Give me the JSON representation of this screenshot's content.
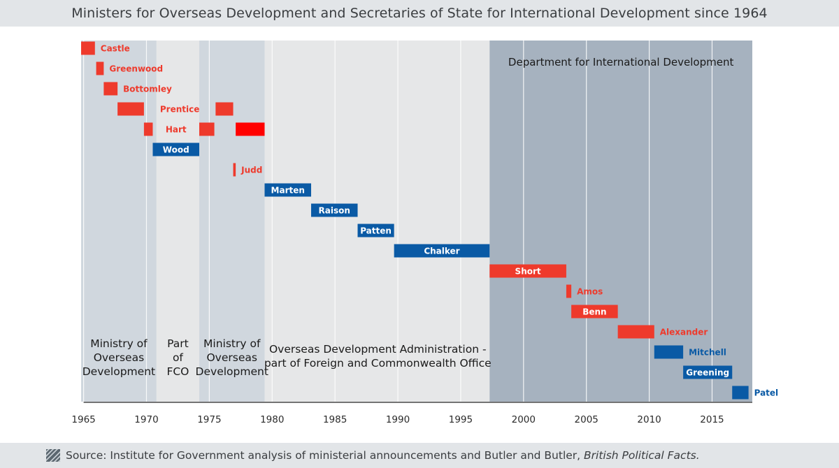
{
  "title": "Ministers for Overseas Development and Secretaries of State for International Development since 1964",
  "source": {
    "prefix": "Source: Institute for Government analysis of ministerial announcements and Butler and Butler, ",
    "italic": "British Political Facts."
  },
  "colors": {
    "labour": "#ee3a2c",
    "labour_highlight": "#ff0000",
    "conservative": "#0a5aa5",
    "band_light": "#e6e7e8",
    "band_mid": "#d0d7de",
    "band_dark": "#a6b2bf",
    "grid": "#ffffff",
    "axis": "#222222"
  },
  "chart_data": {
    "type": "gantt",
    "title": "Ministers for Overseas Development and Secretaries of State for International Development since 1964",
    "x_axis": {
      "range": [
        1964.8,
        2018.2
      ],
      "ticks": [
        1965,
        1970,
        1975,
        1980,
        1985,
        1990,
        1995,
        2000,
        2005,
        2010,
        2015
      ],
      "tick_labels": [
        "1965",
        "1970",
        "1975",
        "1980",
        "1985",
        "1990",
        "1995",
        "2000",
        "2005",
        "2010",
        "2015"
      ]
    },
    "periods": [
      {
        "start": 1964.8,
        "end": 1970.8,
        "shade": "mid",
        "label_lines": [
          "Ministry of",
          "Overseas",
          "Development"
        ],
        "label_x": 1967.8
      },
      {
        "start": 1970.8,
        "end": 1974.2,
        "shade": "light",
        "label_lines": [
          "Part",
          "of",
          "FCO"
        ],
        "label_x": 1972.5
      },
      {
        "start": 1974.2,
        "end": 1979.4,
        "shade": "mid",
        "label_lines": [
          "Ministry of",
          "Overseas",
          "Development"
        ],
        "label_x": 1976.8
      },
      {
        "start": 1979.4,
        "end": 1997.3,
        "shade": "light",
        "label_lines": [
          "Overseas Development Administration -",
          "part of Foreign and Commonwealth Office"
        ],
        "label_x": 1988.4
      },
      {
        "start": 1997.3,
        "end": 2018.2,
        "shade": "dark",
        "label_lines": [
          "Department for International Development"
        ],
        "label_x": 2007.75
      }
    ],
    "ministers": [
      {
        "name": "Castle",
        "party": "Labour",
        "row": 0,
        "terms": [
          [
            1964.8,
            1965.9
          ]
        ],
        "label_pos": "right"
      },
      {
        "name": "Greenwood",
        "party": "Labour",
        "row": 1,
        "terms": [
          [
            1966.0,
            1966.6
          ]
        ],
        "label_pos": "right"
      },
      {
        "name": "Bottomley",
        "party": "Labour",
        "row": 2,
        "terms": [
          [
            1966.6,
            1967.7
          ]
        ],
        "label_pos": "right"
      },
      {
        "name": "Prentice",
        "party": "Labour",
        "row": 3,
        "terms": [
          [
            1967.7,
            1969.8
          ],
          [
            1975.5,
            1976.9
          ]
        ],
        "label_pos": "between"
      },
      {
        "name": "Hart",
        "party": "Labour",
        "row": 4,
        "terms": [
          [
            1969.8,
            1970.5
          ],
          [
            1974.2,
            1975.4
          ],
          [
            1977.1,
            1979.4,
            "highlight"
          ]
        ],
        "label_pos": "between"
      },
      {
        "name": "Wood",
        "party": "Conservative",
        "row": 5,
        "terms": [
          [
            1970.5,
            1974.2
          ]
        ],
        "label_pos": "inside"
      },
      {
        "name": "Judd",
        "party": "Labour",
        "row": 6,
        "terms": [
          [
            1976.9,
            1977.1
          ]
        ],
        "label_pos": "right"
      },
      {
        "name": "Marten",
        "party": "Conservative",
        "row": 7,
        "terms": [
          [
            1979.4,
            1983.1
          ]
        ],
        "label_pos": "inside"
      },
      {
        "name": "Raison",
        "party": "Conservative",
        "row": 8,
        "terms": [
          [
            1983.1,
            1986.8
          ]
        ],
        "label_pos": "inside"
      },
      {
        "name": "Patten",
        "party": "Conservative",
        "row": 9,
        "terms": [
          [
            1986.8,
            1989.7
          ]
        ],
        "label_pos": "inside"
      },
      {
        "name": "Chalker",
        "party": "Conservative",
        "row": 10,
        "terms": [
          [
            1989.7,
            1997.3
          ]
        ],
        "label_pos": "inside"
      },
      {
        "name": "Short",
        "party": "Labour",
        "row": 11,
        "terms": [
          [
            1997.3,
            2003.4
          ]
        ],
        "label_pos": "inside"
      },
      {
        "name": "Amos",
        "party": "Labour",
        "row": 12,
        "terms": [
          [
            2003.4,
            2003.8
          ]
        ],
        "label_pos": "right"
      },
      {
        "name": "Benn",
        "party": "Labour",
        "row": 13,
        "terms": [
          [
            2003.8,
            2007.5
          ]
        ],
        "label_pos": "inside"
      },
      {
        "name": "Alexander",
        "party": "Labour",
        "row": 14,
        "terms": [
          [
            2007.5,
            2010.4
          ]
        ],
        "label_pos": "right"
      },
      {
        "name": "Mitchell",
        "party": "Conservative",
        "row": 15,
        "terms": [
          [
            2010.4,
            2012.7
          ]
        ],
        "label_pos": "right"
      },
      {
        "name": "Greening",
        "party": "Conservative",
        "row": 16,
        "terms": [
          [
            2012.7,
            2016.6
          ]
        ],
        "label_pos": "inside"
      },
      {
        "name": "Patel",
        "party": "Conservative",
        "row": 17,
        "terms": [
          [
            2016.6,
            2017.9
          ]
        ],
        "label_pos": "right"
      }
    ]
  }
}
